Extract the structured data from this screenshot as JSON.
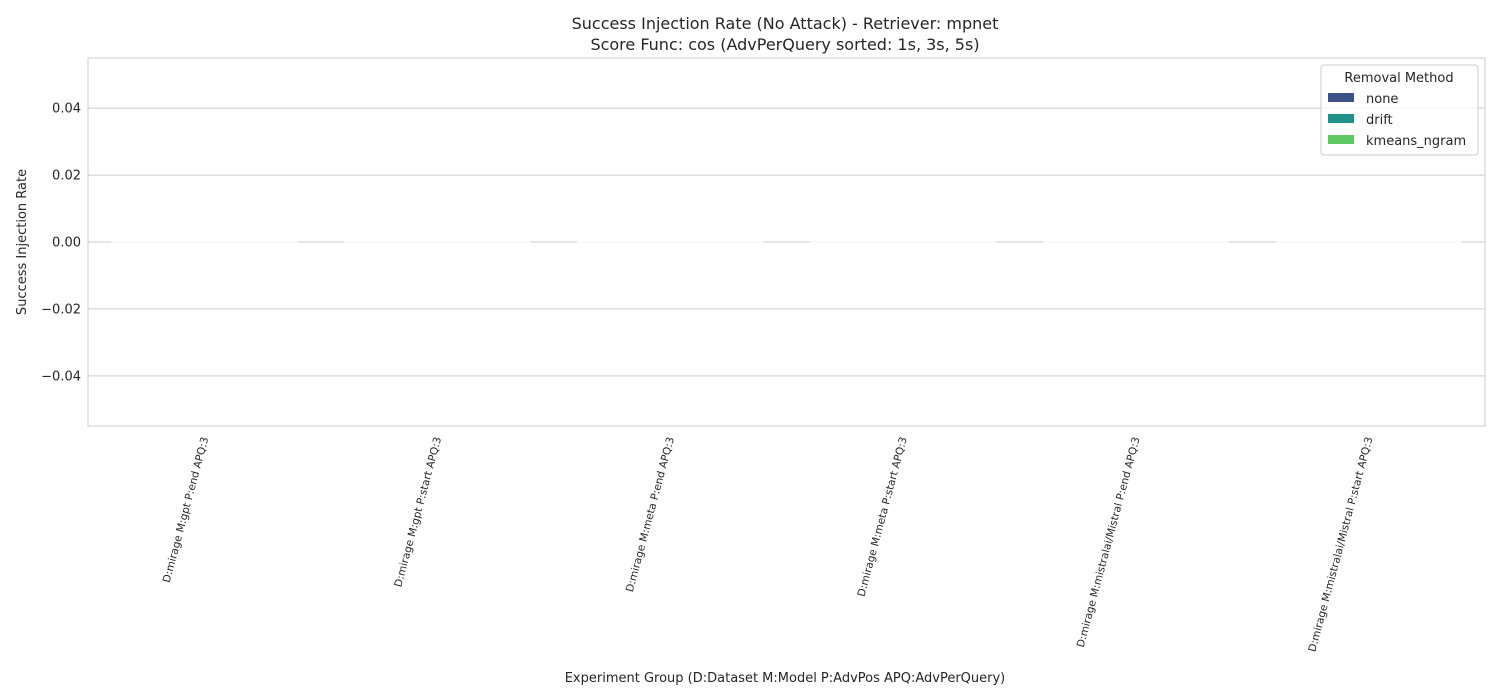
{
  "chart_data": {
    "type": "bar",
    "title": "Success Injection Rate (No Attack) - Retriever: mpnet",
    "subtitle": "Score Func: cos (AdvPerQuery sorted: 1s, 3s, 5s)",
    "xlabel": "Experiment Group (D:Dataset M:Model P:AdvPos APQ:AdvPerQuery)",
    "ylabel": "Success Injection Rate",
    "ylim": [
      -0.055,
      0.055
    ],
    "yticks": [
      0.04,
      0.02,
      0.0,
      -0.02,
      -0.04
    ],
    "ytick_labels": [
      "0.04",
      "0.02",
      "0.00",
      "−0.02",
      "−0.04"
    ],
    "grid": true,
    "categories": [
      "D:mirage M:gpt P:end APQ:3",
      "D:mirage M:gpt P:start APQ:3",
      "D:mirage M:meta P:end APQ:3",
      "D:mirage M:meta P:start APQ:3",
      "D:mirage M:mistralai/Mistral P:end APQ:3",
      "D:mirage M:mistralai/Mistral P:start APQ:3"
    ],
    "series": [
      {
        "name": "none",
        "values": [
          0,
          0,
          0,
          0,
          0,
          0
        ]
      },
      {
        "name": "drift",
        "values": [
          0,
          0,
          0,
          0,
          0,
          0
        ]
      },
      {
        "name": "kmeans_ngram",
        "values": [
          0,
          0,
          0,
          0,
          0,
          0
        ]
      }
    ],
    "legend": {
      "title": "Removal Method",
      "position": "top-right"
    },
    "colors": {
      "none": "#3b528b",
      "drift": "#21918c",
      "kmeans_ngram": "#5ec962",
      "grid": "#cccccc",
      "frame": "#cccccc"
    }
  }
}
